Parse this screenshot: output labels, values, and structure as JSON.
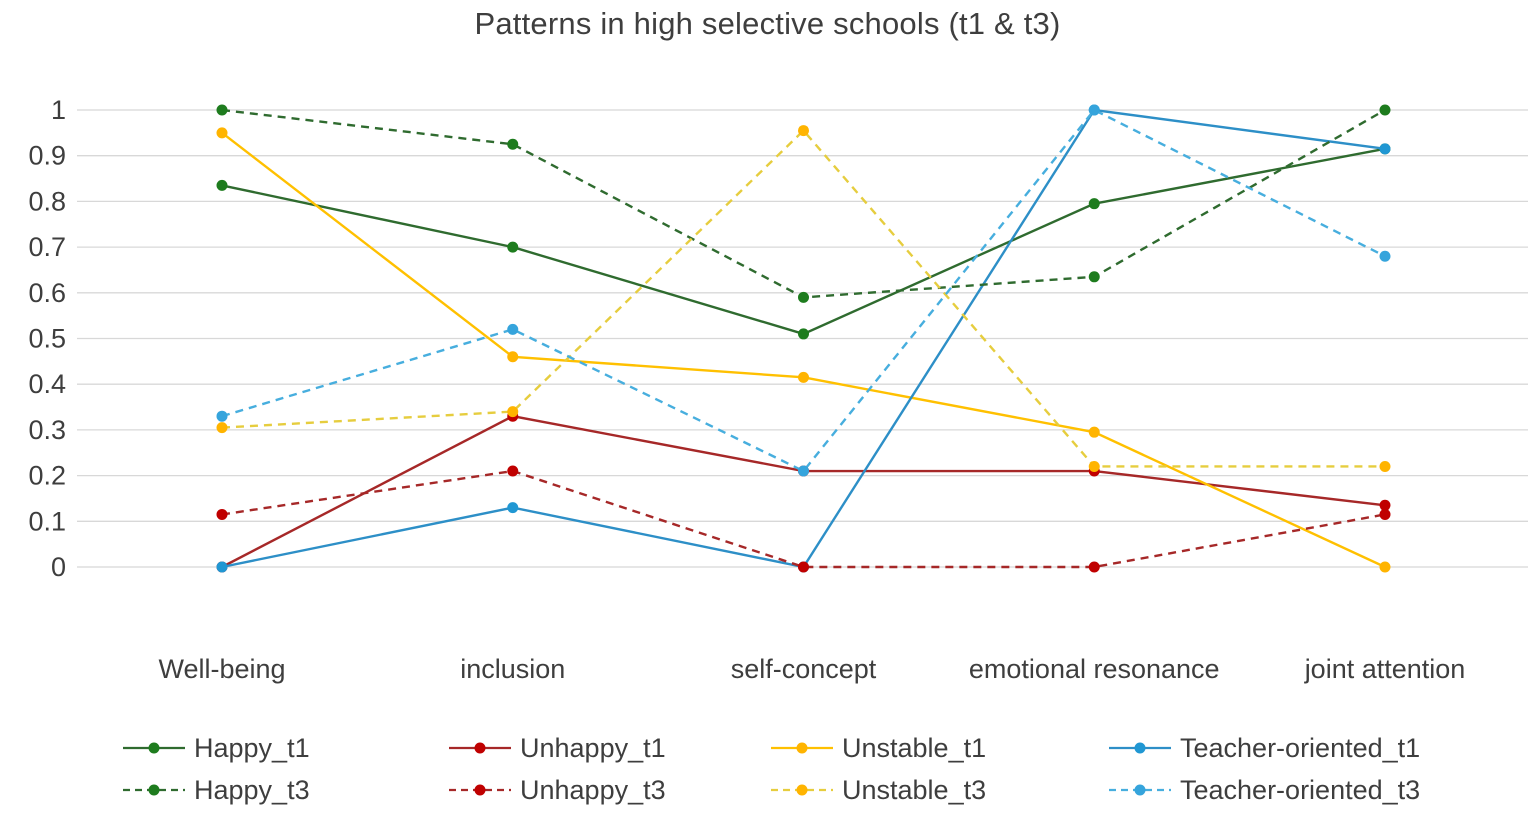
{
  "chart_data": {
    "type": "line",
    "title": "Patterns in high selective schools (t1 & t3)",
    "categories": [
      "Well-being",
      "inclusion",
      "self-concept",
      "emotional resonance",
      "joint attention"
    ],
    "series": [
      {
        "name": "Happy_t1",
        "values": [
          0.835,
          0.7,
          0.51,
          0.795,
          0.915
        ],
        "dash": false,
        "color": "#2f6b2f",
        "marker": "#1e7c1e"
      },
      {
        "name": "Unhappy_t1",
        "values": [
          0,
          0.33,
          0.21,
          0.21,
          0.135
        ],
        "dash": false,
        "color": "#a62828",
        "marker": "#c00000"
      },
      {
        "name": "Unstable_t1",
        "values": [
          0.95,
          0.46,
          0.415,
          0.295,
          0
        ],
        "dash": false,
        "color": "#ffc000",
        "marker": "#ffb400"
      },
      {
        "name": "Teacher-oriented_t1",
        "values": [
          0,
          0.13,
          0,
          1,
          0.915
        ],
        "dash": false,
        "color": "#2d8fc7",
        "marker": "#2097d3"
      },
      {
        "name": "Happy_t3",
        "values": [
          1,
          0.925,
          0.59,
          0.635,
          1
        ],
        "dash": true,
        "color": "#2f6b2f",
        "marker": "#1e7c1e"
      },
      {
        "name": "Unhappy_t3",
        "values": [
          0.115,
          0.21,
          0,
          0,
          0.115
        ],
        "dash": true,
        "color": "#a62828",
        "marker": "#c00000"
      },
      {
        "name": "Unstable_t3",
        "values": [
          0.305,
          0.34,
          0.955,
          0.22,
          0.22
        ],
        "dash": true,
        "color": "#e6cd3e",
        "marker": "#ffb400"
      },
      {
        "name": "Teacher-oriented_t3",
        "values": [
          0.33,
          0.52,
          0.21,
          1,
          0.68
        ],
        "dash": true,
        "color": "#47aede",
        "marker": "#35a4dc"
      }
    ],
    "ylim": [
      0,
      1
    ],
    "yticks": [
      "1",
      "0.9",
      "0.8",
      "0.7",
      "0.6",
      "0.5",
      "0.4",
      "0.3",
      "0.2",
      "0.1",
      "0"
    ],
    "grid": "horizontal",
    "gridline_color": "#d8d8d8",
    "text_color": "#3e3e3e",
    "legend_position": "bottom",
    "legend_rows": [
      [
        "Happy_t1",
        "Unhappy_t1",
        "Unstable_t1",
        "Teacher-oriented_t1"
      ],
      [
        "Happy_t3",
        "Unhappy_t3",
        "Unstable_t3",
        "Teacher-oriented_t3"
      ]
    ]
  }
}
